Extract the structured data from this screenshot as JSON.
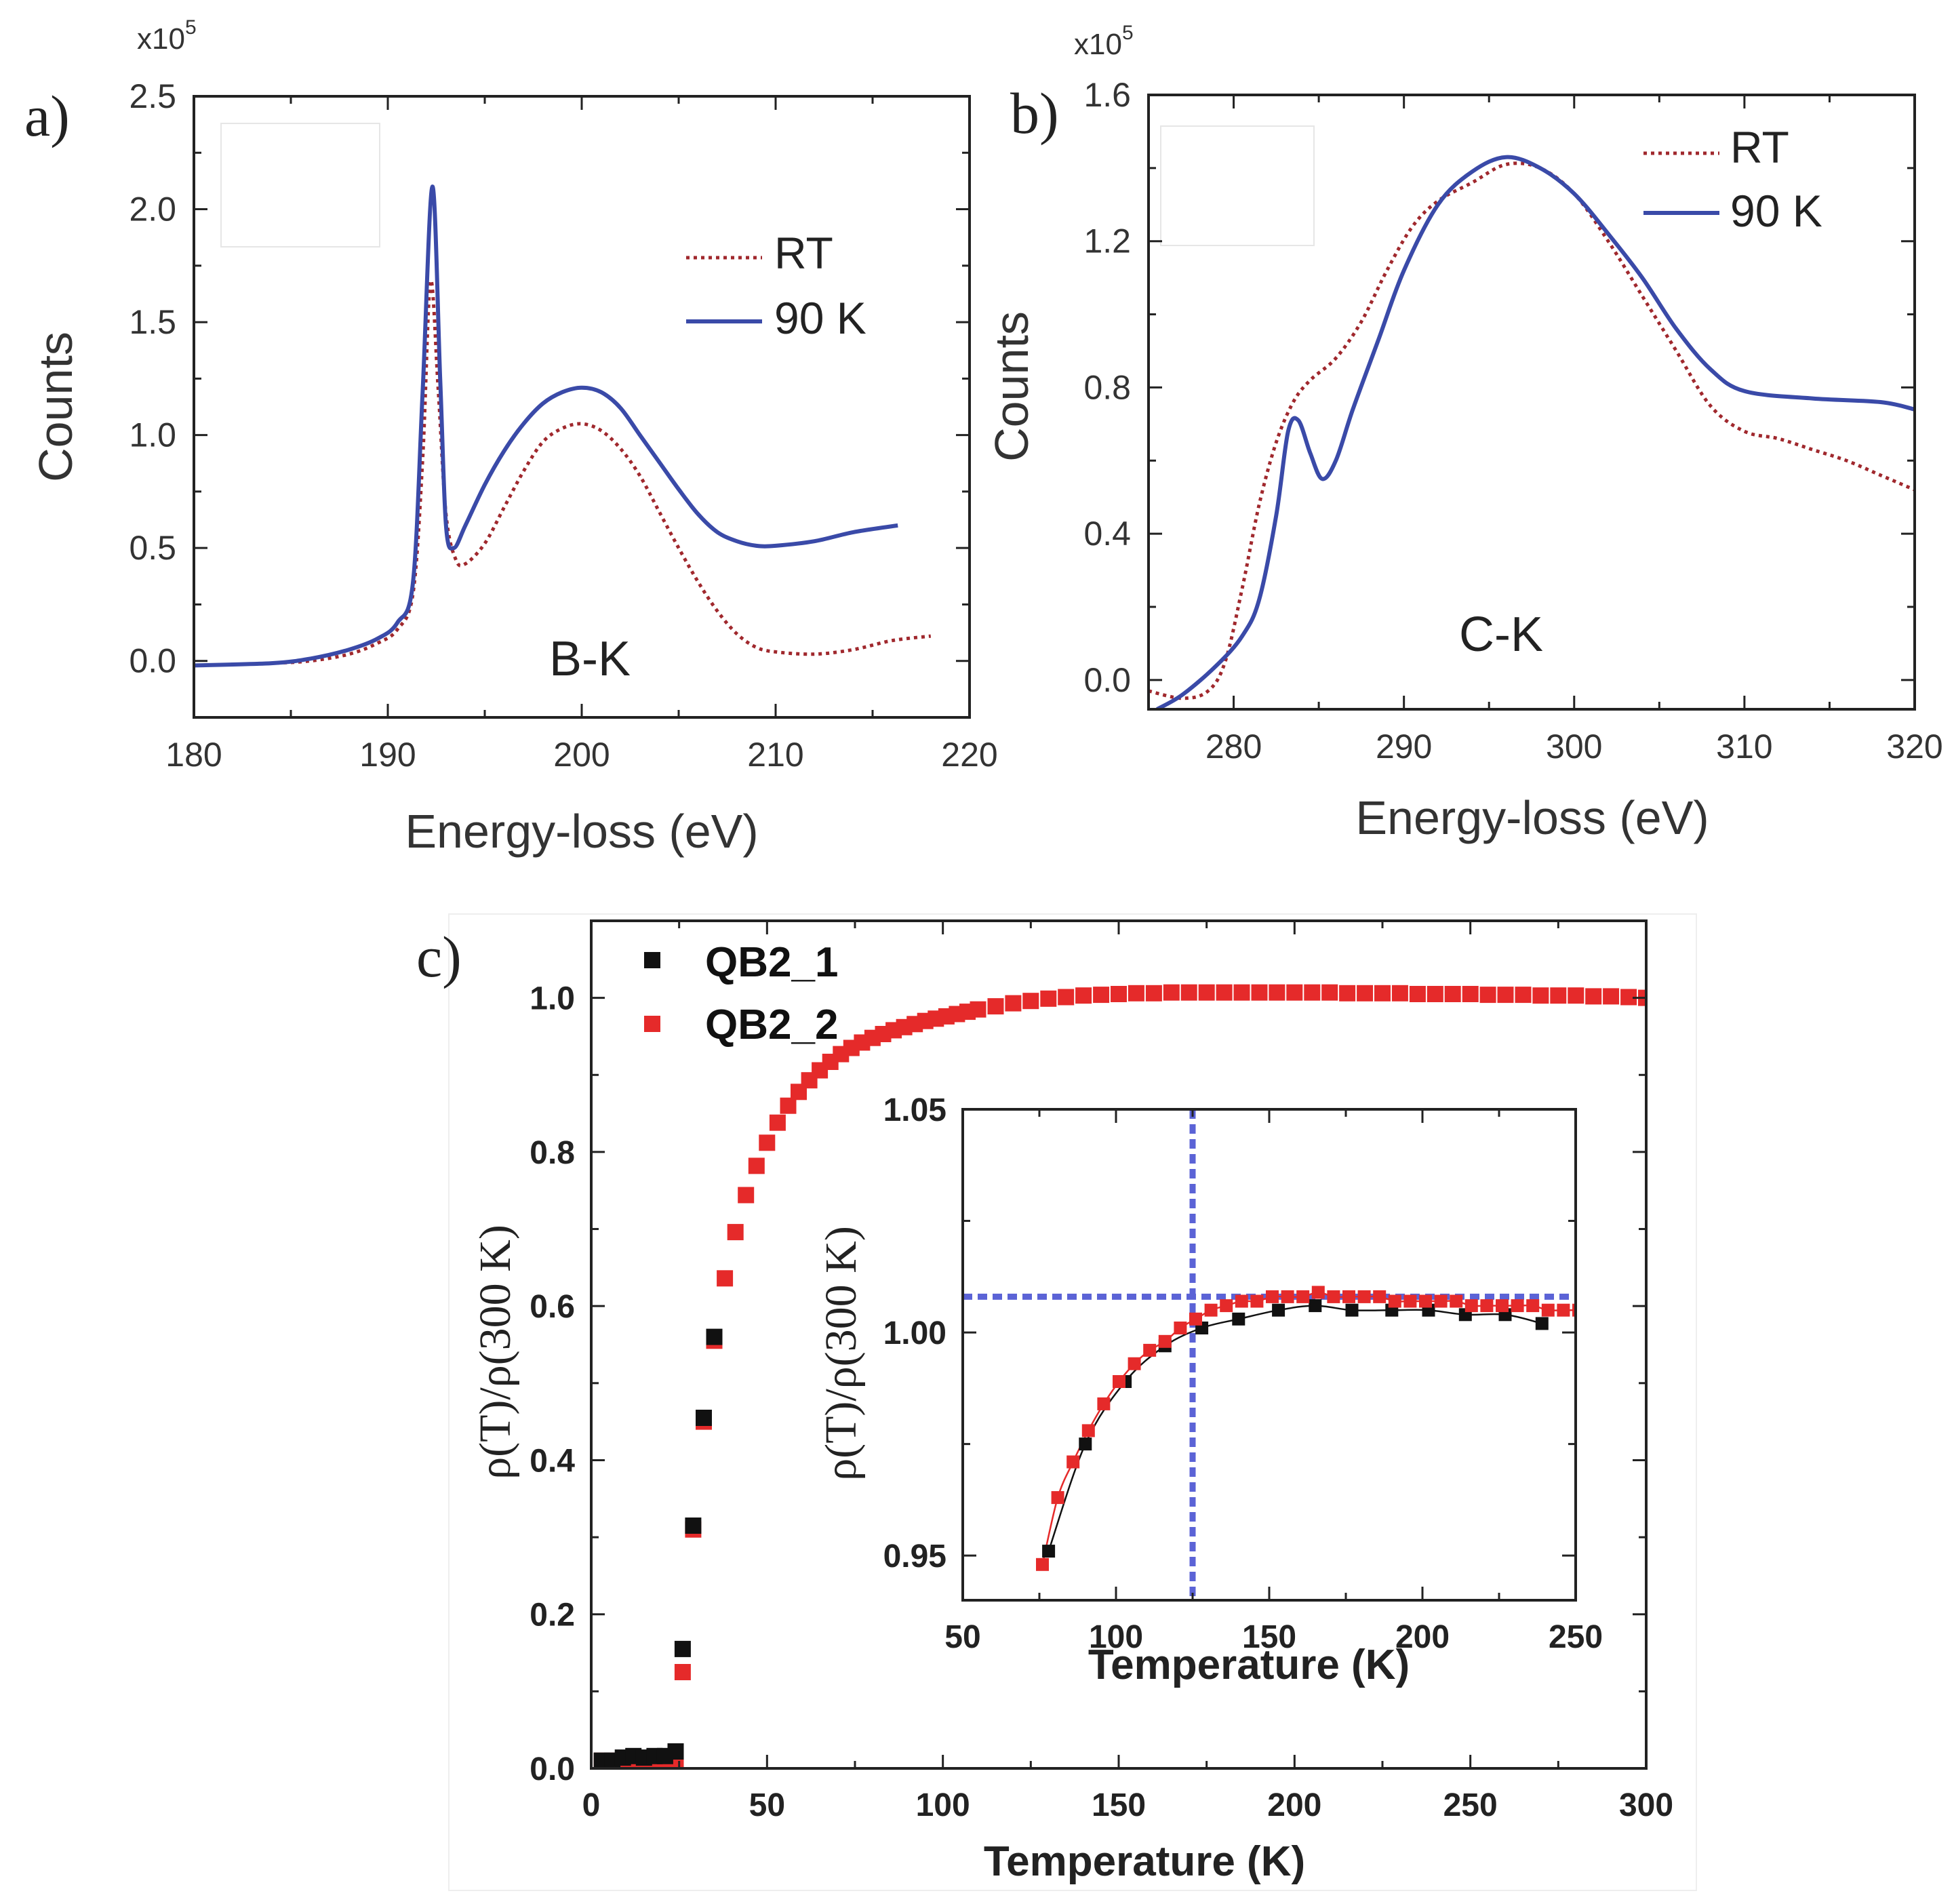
{
  "colors": {
    "rt": "#a0282d",
    "k90": "#3a4aa8",
    "qb1": "#111111",
    "qb2": "#e52a2a",
    "guide": "#5b63d6"
  },
  "chart_data": [
    {
      "panel": "a)",
      "type": "line",
      "annotation": "B-K",
      "xlabel": "Energy-loss (eV)",
      "ylabel": "Counts",
      "y_exponent_label": "x10",
      "y_exponent_power": "5",
      "xlim": [
        180,
        220
      ],
      "ylim": [
        -0.25,
        2.5
      ],
      "xticks": [
        "180",
        "190",
        "200",
        "210",
        "220"
      ],
      "yticks": [
        "0.0",
        "0.5",
        "1.0",
        "1.5",
        "2.0",
        "2.5"
      ],
      "legend": [
        "RT",
        "90 K"
      ],
      "series": [
        {
          "name": "RT",
          "style": "dotted",
          "x": [
            180,
            184,
            186,
            188,
            189.5,
            190.5,
            191.3,
            191.8,
            192.2,
            192.6,
            193.0,
            193.5,
            194.0,
            195.0,
            196.0,
            197.0,
            198.0,
            199.0,
            200.0,
            201.0,
            202.0,
            203.0,
            204.0,
            205.0,
            206.0,
            207.0,
            208.0,
            209.0,
            210.0,
            212.0,
            214.0,
            216.0,
            218.0
          ],
          "y": [
            -0.02,
            -0.01,
            0.0,
            0.03,
            0.08,
            0.14,
            0.3,
            0.9,
            1.68,
            1.2,
            0.65,
            0.45,
            0.43,
            0.52,
            0.68,
            0.84,
            0.97,
            1.03,
            1.05,
            1.02,
            0.94,
            0.82,
            0.66,
            0.5,
            0.35,
            0.22,
            0.12,
            0.06,
            0.04,
            0.03,
            0.05,
            0.09,
            0.11
          ]
        },
        {
          "name": "90 K",
          "style": "solid",
          "x": [
            180,
            184,
            186,
            188,
            189.5,
            190.5,
            191.3,
            191.8,
            192.3,
            192.7,
            193.0,
            193.4,
            194.0,
            195.0,
            196.0,
            197.0,
            198.0,
            199.0,
            200.0,
            201.0,
            202.0,
            203.0,
            204.0,
            205.0,
            206.0,
            207.0,
            208.0,
            209.0,
            210.0,
            212.0,
            214.0,
            216.3
          ],
          "y": [
            -0.02,
            -0.01,
            0.01,
            0.05,
            0.1,
            0.17,
            0.35,
            1.2,
            2.1,
            1.25,
            0.6,
            0.5,
            0.6,
            0.78,
            0.93,
            1.05,
            1.14,
            1.19,
            1.21,
            1.19,
            1.12,
            1.0,
            0.88,
            0.76,
            0.65,
            0.57,
            0.53,
            0.51,
            0.51,
            0.53,
            0.57,
            0.6
          ]
        }
      ]
    },
    {
      "panel": "b)",
      "type": "line",
      "annotation": "C-K",
      "xlabel": "Energy-loss (eV)",
      "ylabel": "Counts",
      "y_exponent_label": "x10",
      "y_exponent_power": "5",
      "xlim": [
        275,
        320
      ],
      "ylim": [
        -0.08,
        1.6
      ],
      "xticks": [
        "280",
        "290",
        "300",
        "310",
        "320"
      ],
      "yticks": [
        "0.0",
        "0.4",
        "0.8",
        "1.2",
        "1.6"
      ],
      "legend": [
        "RT",
        "90 K"
      ],
      "series": [
        {
          "name": "RT",
          "style": "dotted",
          "x": [
            275,
            277,
            278.5,
            279.5,
            280.5,
            281.5,
            282.5,
            283.5,
            284.5,
            286,
            287.5,
            289,
            290.5,
            292,
            294,
            296,
            298,
            300,
            302,
            304,
            306,
            308,
            310,
            312,
            314,
            316,
            318,
            320
          ],
          "y": [
            -0.03,
            -0.05,
            -0.03,
            0.05,
            0.25,
            0.48,
            0.65,
            0.76,
            0.82,
            0.88,
            0.98,
            1.12,
            1.24,
            1.31,
            1.36,
            1.41,
            1.4,
            1.33,
            1.2,
            1.05,
            0.9,
            0.75,
            0.68,
            0.66,
            0.63,
            0.6,
            0.56,
            0.52
          ]
        },
        {
          "name": "90 K",
          "style": "solid",
          "x": [
            275.5,
            277,
            279,
            280.5,
            281.5,
            282.5,
            283.2,
            283.8,
            284.5,
            285.2,
            286,
            287,
            288.5,
            290,
            292,
            294,
            296,
            298,
            300,
            302,
            304,
            306,
            308,
            310,
            314,
            318,
            320
          ],
          "y": [
            -0.08,
            -0.04,
            0.04,
            0.12,
            0.22,
            0.45,
            0.68,
            0.71,
            0.62,
            0.55,
            0.6,
            0.74,
            0.93,
            1.12,
            1.3,
            1.39,
            1.43,
            1.4,
            1.33,
            1.22,
            1.1,
            0.96,
            0.85,
            0.79,
            0.77,
            0.76,
            0.74
          ]
        }
      ]
    },
    {
      "panel": "c)",
      "type": "scatter",
      "xlabel": "Temperature (K)",
      "ylabel": "ρ(T)/ρ(300 K)",
      "xlim": [
        0,
        300
      ],
      "ylim": [
        0.0,
        1.1
      ],
      "xticks": [
        "0",
        "50",
        "100",
        "150",
        "200",
        "250",
        "300"
      ],
      "yticks": [
        "0.0",
        "0.2",
        "0.4",
        "0.6",
        "0.8",
        "1.0"
      ],
      "legend": [
        "QB2_1",
        "QB2_2"
      ],
      "series": [
        {
          "name": "QB2_1",
          "marker": "square",
          "x": [
            3,
            6,
            9,
            12,
            15,
            18,
            21,
            24,
            26,
            29,
            32,
            35
          ],
          "y": [
            0.01,
            0.01,
            0.014,
            0.016,
            0.014,
            0.016,
            0.016,
            0.022,
            0.155,
            0.315,
            0.455,
            0.56
          ]
        },
        {
          "name": "QB2_2",
          "marker": "square",
          "x": [
            3,
            6,
            9,
            12,
            15,
            18,
            21,
            24,
            26,
            29,
            32,
            35,
            38,
            41,
            44,
            47,
            50,
            53,
            56,
            59,
            62,
            65,
            68,
            71,
            74,
            77,
            80,
            83,
            86,
            89,
            92,
            95,
            98,
            101,
            104,
            107,
            110,
            115,
            120,
            125,
            130,
            135,
            140,
            145,
            150,
            155,
            160,
            165,
            170,
            175,
            180,
            185,
            190,
            195,
            200,
            205,
            210,
            215,
            220,
            225,
            230,
            235,
            240,
            245,
            250,
            255,
            260,
            265,
            270,
            275,
            280,
            285,
            290,
            295,
            300
          ],
          "y": [
            0.01,
            0.01,
            0.01,
            0.01,
            0.01,
            0.01,
            0.01,
            0.012,
            0.125,
            0.31,
            0.45,
            0.555,
            0.636,
            0.696,
            0.744,
            0.782,
            0.812,
            0.838,
            0.86,
            0.878,
            0.893,
            0.906,
            0.917,
            0.927,
            0.935,
            0.942,
            0.948,
            0.953,
            0.958,
            0.962,
            0.966,
            0.97,
            0.973,
            0.976,
            0.979,
            0.982,
            0.985,
            0.989,
            0.993,
            0.996,
            0.999,
            1.001,
            1.003,
            1.004,
            1.005,
            1.006,
            1.006,
            1.007,
            1.007,
            1.007,
            1.007,
            1.007,
            1.007,
            1.007,
            1.007,
            1.007,
            1.007,
            1.006,
            1.006,
            1.006,
            1.006,
            1.005,
            1.005,
            1.005,
            1.005,
            1.004,
            1.004,
            1.004,
            1.003,
            1.003,
            1.003,
            1.002,
            1.002,
            1.001,
            1.0
          ]
        }
      ]
    },
    {
      "panel": "c) inset",
      "type": "scatter",
      "xlabel": "Temperature (K)",
      "ylabel": "ρ(T)/ρ(300 K)",
      "xlim": [
        50,
        250
      ],
      "ylim": [
        0.94,
        1.05
      ],
      "xticks": [
        "50",
        "100",
        "150",
        "200",
        "250"
      ],
      "yticks": [
        "0.95",
        "1.00",
        "1.05"
      ],
      "guide_lines": {
        "vertical_x": 125,
        "horizontal_y": 1.008
      },
      "series": [
        {
          "name": "QB2_1",
          "marker": "square",
          "x": [
            78,
            90,
            103,
            116,
            128,
            140,
            153,
            165,
            177,
            190,
            202,
            214,
            227,
            239
          ],
          "y": [
            0.951,
            0.975,
            0.989,
            0.997,
            1.001,
            1.003,
            1.005,
            1.006,
            1.005,
            1.005,
            1.005,
            1.004,
            1.004,
            1.002
          ]
        },
        {
          "name": "QB2_2",
          "marker": "square",
          "x": [
            76,
            81,
            86,
            91,
            96,
            101,
            106,
            111,
            116,
            121,
            126,
            131,
            136,
            141,
            146,
            151,
            156,
            161,
            166,
            171,
            176,
            181,
            186,
            191,
            196,
            201,
            206,
            211,
            216,
            221,
            226,
            231,
            236,
            241,
            246,
            251
          ],
          "y": [
            0.948,
            0.963,
            0.971,
            0.978,
            0.984,
            0.989,
            0.993,
            0.996,
            0.998,
            1.001,
            1.003,
            1.005,
            1.006,
            1.007,
            1.007,
            1.008,
            1.008,
            1.008,
            1.009,
            1.008,
            1.008,
            1.008,
            1.008,
            1.007,
            1.007,
            1.007,
            1.007,
            1.007,
            1.006,
            1.006,
            1.006,
            1.006,
            1.006,
            1.005,
            1.005,
            1.005
          ]
        }
      ]
    }
  ]
}
